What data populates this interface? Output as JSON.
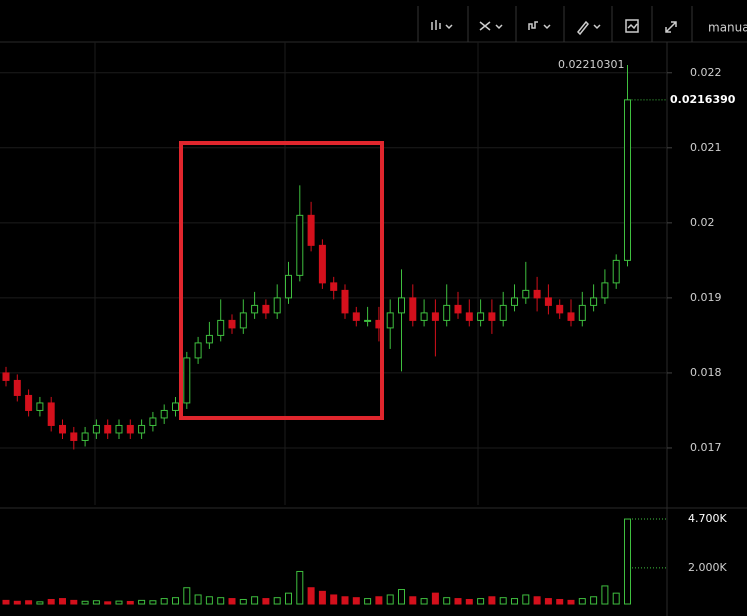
{
  "toolbar": {
    "mode": "manual"
  },
  "chart_data": {
    "type": "candlestick",
    "up_color": "#3fbf3f",
    "down_color": "#d4101c",
    "open": [
      0.018,
      0.0179,
      0.0177,
      0.0175,
      0.0176,
      0.0173,
      0.0172,
      0.0171,
      0.0172,
      0.0173,
      0.0172,
      0.0173,
      0.0172,
      0.0173,
      0.0174,
      0.0175,
      0.0176,
      0.0182,
      0.0184,
      0.0185,
      0.0187,
      0.0186,
      0.0188,
      0.0189,
      0.0188,
      0.019,
      0.0193,
      0.0201,
      0.0197,
      0.0192,
      0.0191,
      0.0188,
      0.0187,
      0.0187,
      0.0186,
      0.0188,
      0.019,
      0.0187,
      0.0188,
      0.0187,
      0.0189,
      0.0188,
      0.0187,
      0.0188,
      0.0187,
      0.0189,
      0.019,
      0.0191,
      0.019,
      0.0189,
      0.0188,
      0.0187,
      0.0189,
      0.019,
      0.0192,
      0.0195
    ],
    "high": [
      0.01808,
      0.01798,
      0.01778,
      0.01768,
      0.01768,
      0.01738,
      0.01728,
      0.01728,
      0.01738,
      0.01738,
      0.01738,
      0.01738,
      0.01738,
      0.01748,
      0.01758,
      0.01768,
      0.01828,
      0.01848,
      0.01868,
      0.01898,
      0.01878,
      0.01898,
      0.01908,
      0.01898,
      0.01918,
      0.01948,
      0.0205,
      0.02028,
      0.01978,
      0.01928,
      0.01918,
      0.01888,
      0.01888,
      0.01888,
      0.01898,
      0.01938,
      0.01918,
      0.01898,
      0.01898,
      0.01918,
      0.01908,
      0.01898,
      0.01898,
      0.01898,
      0.01908,
      0.01918,
      0.01948,
      0.01928,
      0.01918,
      0.01898,
      0.01898,
      0.01908,
      0.01918,
      0.01938,
      0.01958,
      0.02210301
    ],
    "low": [
      0.01782,
      0.01762,
      0.01742,
      0.01742,
      0.01722,
      0.01712,
      0.01698,
      0.01702,
      0.01712,
      0.01712,
      0.01712,
      0.01712,
      0.01712,
      0.01722,
      0.01732,
      0.01742,
      0.01752,
      0.01812,
      0.01832,
      0.01842,
      0.01852,
      0.01852,
      0.01872,
      0.01872,
      0.01872,
      0.01892,
      0.01922,
      0.01962,
      0.01912,
      0.01898,
      0.01872,
      0.01862,
      0.01862,
      0.01842,
      0.01832,
      0.01802,
      0.01862,
      0.01862,
      0.01822,
      0.01862,
      0.01872,
      0.01862,
      0.01862,
      0.01852,
      0.01862,
      0.01882,
      0.01892,
      0.01882,
      0.01878,
      0.01872,
      0.01862,
      0.01862,
      0.01882,
      0.01892,
      0.01912,
      0.01942
    ],
    "close": [
      0.0179,
      0.0177,
      0.0175,
      0.0176,
      0.0173,
      0.0172,
      0.0171,
      0.0172,
      0.0173,
      0.0172,
      0.0173,
      0.0172,
      0.0173,
      0.0174,
      0.0175,
      0.0176,
      0.0182,
      0.0184,
      0.0185,
      0.0187,
      0.0186,
      0.0188,
      0.0189,
      0.0188,
      0.019,
      0.0193,
      0.0201,
      0.0197,
      0.0192,
      0.0191,
      0.0188,
      0.0187,
      0.0187,
      0.0186,
      0.0188,
      0.019,
      0.0187,
      0.0188,
      0.0187,
      0.0189,
      0.0188,
      0.0187,
      0.0188,
      0.0187,
      0.0189,
      0.019,
      0.0191,
      0.019,
      0.0189,
      0.0188,
      0.0187,
      0.0189,
      0.019,
      0.0192,
      0.0195,
      0.021639
    ],
    "volume": [
      200,
      150,
      180,
      120,
      250,
      300,
      200,
      150,
      180,
      120,
      160,
      140,
      200,
      180,
      300,
      350,
      900,
      500,
      400,
      350,
      300,
      250,
      400,
      300,
      350,
      600,
      1800,
      900,
      700,
      500,
      400,
      350,
      300,
      400,
      500,
      800,
      400,
      300,
      600,
      350,
      300,
      250,
      300,
      400,
      350,
      300,
      500,
      400,
      300,
      250,
      200,
      300,
      400,
      1000,
      600,
      4700
    ],
    "last_price_label": "0.0216390",
    "ylim": [
      0.01624,
      0.02241
    ],
    "yticks": [
      0.017,
      0.018,
      0.019,
      0.02,
      0.021,
      0.022
    ],
    "volume_ylim": [
      0,
      5200
    ],
    "volume_yticks": [
      {
        "value": 2000,
        "label": "2.000K"
      },
      {
        "value": 4700,
        "label": "4.700K"
      }
    ],
    "grid": true
  }
}
